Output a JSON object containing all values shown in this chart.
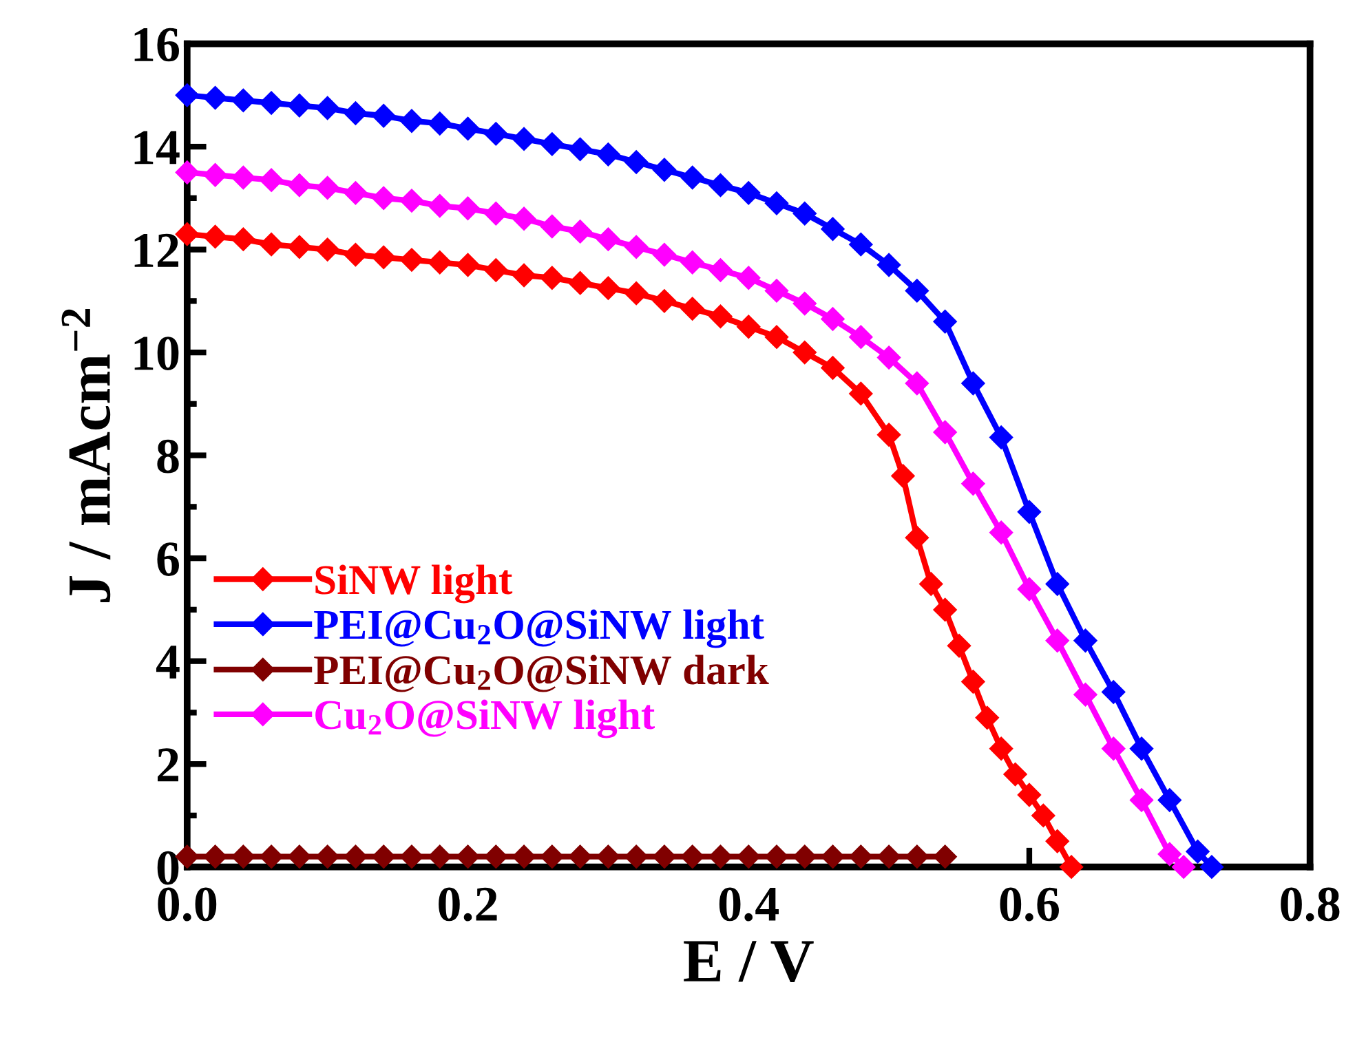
{
  "chart_data": {
    "type": "line",
    "xlabel": "E / V",
    "ylabel": "J / mAcm$^{−2}$",
    "xlim": [
      0,
      0.8
    ],
    "ylim": [
      0,
      16
    ],
    "xticks": [
      {
        "value": 0,
        "label": "0.0"
      },
      {
        "value": 0.1,
        "label": null
      },
      {
        "value": 0.2,
        "label": "0.2"
      },
      {
        "value": 0.3,
        "label": null
      },
      {
        "value": 0.4,
        "label": "0.4"
      },
      {
        "value": 0.5,
        "label": null
      },
      {
        "value": 0.6,
        "label": "0.6"
      },
      {
        "value": 0.7,
        "label": null
      },
      {
        "value": 0.8,
        "label": "0.8"
      }
    ],
    "yticks": [
      0,
      {
        "value": 1,
        "label": null
      },
      2,
      {
        "value": 3,
        "label": null
      },
      4,
      {
        "value": 5,
        "label": null
      },
      6,
      {
        "value": 7,
        "label": null
      },
      8,
      {
        "value": 9,
        "label": null
      },
      10,
      {
        "value": 11,
        "label": null
      },
      12,
      {
        "value": 13,
        "label": null
      },
      14,
      {
        "value": 15,
        "label": null
      },
      16
    ],
    "marker": "diamond",
    "line_style": "solid",
    "grid": false,
    "legend": "bottom left",
    "series": [
      {
        "name": "SiNW light",
        "color": "#ff0000",
        "x": [
          0,
          0.02,
          0.04,
          0.06,
          0.08,
          0.1,
          0.12,
          0.14,
          0.16,
          0.18,
          0.2,
          0.22,
          0.24,
          0.26,
          0.28,
          0.3,
          0.32,
          0.34,
          0.36,
          0.38,
          0.4,
          0.42,
          0.44,
          0.46,
          0.48,
          0.5,
          0.51,
          0.52,
          0.53,
          0.54,
          0.55,
          0.56,
          0.57,
          0.58,
          0.59,
          0.6,
          0.61,
          0.62,
          0.63
        ],
        "values": [
          12.3,
          12.25,
          12.2,
          12.1,
          12.05,
          12.0,
          11.9,
          11.85,
          11.8,
          11.75,
          11.7,
          11.6,
          11.5,
          11.45,
          11.35,
          11.25,
          11.15,
          11.0,
          10.85,
          10.7,
          10.5,
          10.3,
          10.0,
          9.7,
          9.2,
          8.4,
          7.6,
          6.4,
          5.5,
          5.0,
          4.3,
          3.6,
          2.9,
          2.3,
          1.8,
          1.4,
          1.0,
          0.5,
          0.0
        ]
      },
      {
        "name": "PEI@Cu$_{2}$O@SiNW light",
        "color": "#0000ff",
        "x": [
          0,
          0.02,
          0.04,
          0.06,
          0.08,
          0.1,
          0.12,
          0.14,
          0.16,
          0.18,
          0.2,
          0.22,
          0.24,
          0.26,
          0.28,
          0.3,
          0.32,
          0.34,
          0.36,
          0.38,
          0.4,
          0.42,
          0.44,
          0.46,
          0.48,
          0.5,
          0.52,
          0.54,
          0.56,
          0.58,
          0.6,
          0.62,
          0.64,
          0.66,
          0.68,
          0.7,
          0.72,
          0.73
        ],
        "values": [
          15.0,
          14.95,
          14.9,
          14.85,
          14.8,
          14.75,
          14.65,
          14.6,
          14.5,
          14.45,
          14.35,
          14.25,
          14.15,
          14.05,
          13.95,
          13.85,
          13.7,
          13.55,
          13.4,
          13.25,
          13.1,
          12.9,
          12.7,
          12.4,
          12.1,
          11.7,
          11.2,
          10.6,
          9.4,
          8.35,
          6.9,
          5.5,
          4.4,
          3.4,
          2.3,
          1.3,
          0.3,
          0.0
        ]
      },
      {
        "name": "PEI@Cu$_{2}$O@SiNW dark",
        "color": "#800000",
        "x": [
          0,
          0.02,
          0.04,
          0.06,
          0.08,
          0.1,
          0.12,
          0.14,
          0.16,
          0.18,
          0.2,
          0.22,
          0.24,
          0.26,
          0.28,
          0.3,
          0.32,
          0.34,
          0.36,
          0.38,
          0.4,
          0.42,
          0.44,
          0.46,
          0.48,
          0.5,
          0.52,
          0.54
        ],
        "values": [
          0.2,
          0.2,
          0.2,
          0.2,
          0.2,
          0.2,
          0.2,
          0.2,
          0.2,
          0.2,
          0.2,
          0.2,
          0.2,
          0.2,
          0.2,
          0.2,
          0.2,
          0.2,
          0.2,
          0.2,
          0.2,
          0.2,
          0.2,
          0.2,
          0.2,
          0.2,
          0.2,
          0.2
        ]
      },
      {
        "name": "Cu$_{2}$O@SiNW light",
        "color": "#ff00ff",
        "x": [
          0,
          0.02,
          0.04,
          0.06,
          0.08,
          0.1,
          0.12,
          0.14,
          0.16,
          0.18,
          0.2,
          0.22,
          0.24,
          0.26,
          0.28,
          0.3,
          0.32,
          0.34,
          0.36,
          0.38,
          0.4,
          0.42,
          0.44,
          0.46,
          0.48,
          0.5,
          0.52,
          0.54,
          0.56,
          0.58,
          0.6,
          0.62,
          0.64,
          0.66,
          0.68,
          0.7,
          0.71
        ],
        "values": [
          13.5,
          13.45,
          13.4,
          13.35,
          13.25,
          13.2,
          13.1,
          13.0,
          12.95,
          12.85,
          12.8,
          12.7,
          12.6,
          12.45,
          12.35,
          12.2,
          12.05,
          11.9,
          11.75,
          11.6,
          11.45,
          11.2,
          10.95,
          10.65,
          10.3,
          9.9,
          9.4,
          8.45,
          7.45,
          6.5,
          5.4,
          4.4,
          3.35,
          2.3,
          1.3,
          0.25,
          0.0
        ]
      }
    ]
  }
}
